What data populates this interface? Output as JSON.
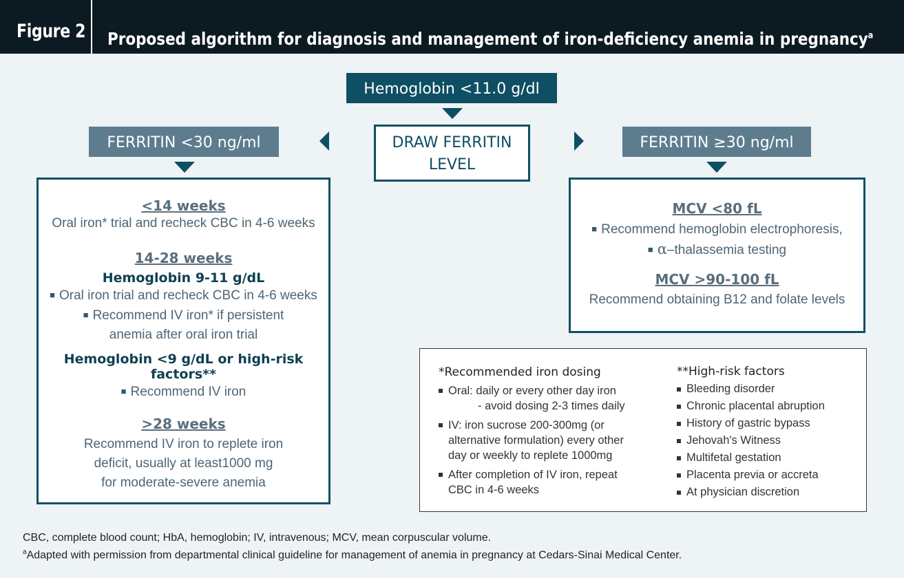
{
  "header": {
    "figure_label": "Figure 2",
    "title": "Proposed algorithm for diagnosis and management of iron-deficiency anemia in pregnancy",
    "title_sup": "a"
  },
  "top_box": "Hemoglobin <11.0 g/dl",
  "center_box": {
    "line1": "DRAW FERRITIN",
    "line2": "LEVEL"
  },
  "left_branch": {
    "label": "FERRITIN <30 ng/ml",
    "sections": {
      "lt14": {
        "heading": "<14 weeks",
        "text": "Oral iron* trial and recheck CBC in 4-6 weeks"
      },
      "w14_28": {
        "heading": "14-28 weeks",
        "sub1": "Hemoglobin 9-11 g/dL",
        "b1": "Oral iron trial and recheck CBC in 4-6 weeks",
        "b2a": "Recommend IV iron* if persistent",
        "b2b": "anemia after oral iron trial",
        "sub2": "Hemoglobin <9 g/dL or high-risk factors**",
        "b3": "Recommend IV iron"
      },
      "gt28": {
        "heading": ">28 weeks",
        "l1": "Recommend IV iron to replete iron",
        "l2": "deficit, usually at least1000 mg",
        "l3": "for moderate-severe anemia"
      }
    }
  },
  "right_branch": {
    "label": "FERRITIN ≥30 ng/ml",
    "mcv_low": {
      "heading": "MCV <80 fL",
      "b1": "Recommend hemoglobin electrophoresis,",
      "b2_symbol": "α",
      "b2": "–thalassemia testing"
    },
    "mcv_high": {
      "heading": "MCV >90-100 fL",
      "text": "Recommend obtaining B12 and folate levels"
    }
  },
  "dosing": {
    "heading": "*Recommended iron dosing",
    "oral_a": "Oral: daily or every other day iron",
    "oral_b": "- avoid dosing 2-3 times daily",
    "iv_a": "IV: iron sucrose 200-300mg (or",
    "iv_b": "alternative formulation) every other",
    "iv_c": "day or weekly to replete 1000mg",
    "after_a": "After completion of IV iron, repeat",
    "after_b": "CBC in 4-6 weeks"
  },
  "risk": {
    "heading": "**High-risk factors",
    "items": [
      "Bleeding disorder",
      "Chronic placental abruption",
      "History of gastric bypass",
      "Jehovah's Witness",
      "Multifetal gestation",
      "Placenta previa or accreta",
      "At physician discretion"
    ]
  },
  "footnotes": {
    "abbrev": "CBC, complete blood count; HbA, hemoglobin; IV, intravenous; MCV, mean corpuscular volume.",
    "sup": "a",
    "source": "Adapted with permission from departmental clinical guideline for management of anemia in pregnancy at Cedars-Sinai Medical Center."
  },
  "colors": {
    "dark_teal": "#0e4f63",
    "slate": "#5d7d8f",
    "header_bg": "#0c1a22",
    "page_bg": "#eef3f6"
  }
}
